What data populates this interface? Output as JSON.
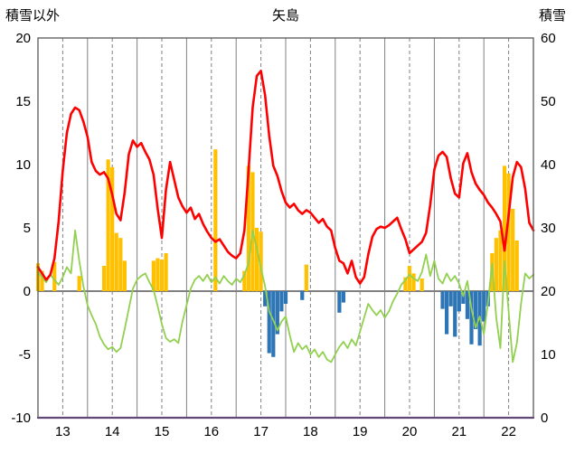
{
  "chart_data": {
    "type": "line+bar",
    "title": "矢島",
    "left_axis": {
      "label": "積雪以外",
      "min": -10,
      "max": 20,
      "ticks": [
        20,
        15,
        10,
        5,
        0,
        -5,
        -10
      ]
    },
    "right_axis": {
      "label": "積雪",
      "min": 0,
      "max": 60,
      "ticks": [
        60,
        50,
        40,
        30,
        20,
        10,
        0
      ]
    },
    "x_axis": {
      "hours_total": 240,
      "labels": [
        "13",
        "14",
        "15",
        "16",
        "17",
        "18",
        "19",
        "20",
        "21",
        "22"
      ],
      "label_positions_h": [
        12,
        36,
        60,
        84,
        108,
        132,
        156,
        180,
        204,
        228
      ],
      "solid_grid_every_h": 24,
      "dashed_grid_offset_h": 12
    },
    "grid": {
      "vertical_on": true,
      "horizontal_on": false,
      "zero_line_on": true
    },
    "series": [
      {
        "name": "orange_bars",
        "type": "bar",
        "axis": "left",
        "color": "#FFC000",
        "points": [
          [
            0,
            2.2
          ],
          [
            2,
            1.6
          ],
          [
            8,
            2.3
          ],
          [
            20,
            1.2
          ],
          [
            32,
            2.0
          ],
          [
            34,
            10.4
          ],
          [
            36,
            9.8
          ],
          [
            38,
            4.6
          ],
          [
            40,
            4.2
          ],
          [
            42,
            2.4
          ],
          [
            56,
            2.4
          ],
          [
            58,
            2.6
          ],
          [
            60,
            2.5
          ],
          [
            62,
            3.0
          ],
          [
            86,
            11.2
          ],
          [
            100,
            1.6
          ],
          [
            102,
            9.9
          ],
          [
            104,
            9.4
          ],
          [
            106,
            5.0
          ],
          [
            108,
            4.7
          ],
          [
            130,
            2.1
          ],
          [
            178,
            1.1
          ],
          [
            180,
            2.0
          ],
          [
            182,
            1.4
          ],
          [
            186,
            1.0
          ],
          [
            220,
            3.0
          ],
          [
            222,
            4.2
          ],
          [
            224,
            4.8
          ],
          [
            226,
            9.9
          ],
          [
            228,
            9.3
          ],
          [
            230,
            6.5
          ],
          [
            232,
            4.0
          ]
        ]
      },
      {
        "name": "blue_bars",
        "type": "bar",
        "axis": "left",
        "color": "#2E75B6",
        "points": [
          [
            110,
            -1.2
          ],
          [
            112,
            -4.9
          ],
          [
            114,
            -5.2
          ],
          [
            116,
            -3.4
          ],
          [
            118,
            -1.6
          ],
          [
            120,
            -1.0
          ],
          [
            128,
            -0.7
          ],
          [
            146,
            -1.7
          ],
          [
            148,
            -0.9
          ],
          [
            196,
            -1.4
          ],
          [
            198,
            -3.4
          ],
          [
            200,
            -1.2
          ],
          [
            202,
            -3.6
          ],
          [
            204,
            -1.6
          ],
          [
            206,
            -1.0
          ],
          [
            208,
            -2.2
          ],
          [
            210,
            -4.2
          ],
          [
            212,
            -3.0
          ],
          [
            214,
            -4.3
          ],
          [
            216,
            -2.4
          ],
          [
            218,
            -1.2
          ]
        ]
      },
      {
        "name": "purple_line",
        "type": "line",
        "axis": "right",
        "color": "#7030A0",
        "width": 2.2,
        "x_h": [
          0,
          240
        ],
        "values": [
          0,
          0
        ]
      },
      {
        "name": "green_line",
        "type": "line",
        "axis": "left",
        "color": "#92D050",
        "width": 1.8,
        "step_h": 2,
        "values": [
          1.5,
          1.1,
          0.7,
          1.3,
          0.9,
          0.5,
          1.1,
          1.9,
          1.4,
          4.8,
          2.4,
          0.4,
          -1.1,
          -1.9,
          -2.6,
          -3.6,
          -4.2,
          -4.6,
          -4.4,
          -4.8,
          -4.5,
          -3.0,
          -1.4,
          0.2,
          0.9,
          1.2,
          1.4,
          0.7,
          0.1,
          -1.2,
          -2.6,
          -3.7,
          -4.0,
          -3.8,
          -4.1,
          -2.4,
          -1.1,
          0.2,
          0.9,
          1.2,
          0.8,
          1.3,
          0.7,
          1.1,
          0.6,
          1.2,
          0.8,
          0.5,
          1.0,
          0.7,
          1.3,
          2.2,
          4.8,
          3.4,
          1.8,
          0.4,
          -1.6,
          -2.3,
          -3.1,
          -2.4,
          -2.0,
          -3.5,
          -4.8,
          -4.1,
          -4.6,
          -4.3,
          -5.0,
          -4.6,
          -5.2,
          -4.8,
          -5.4,
          -5.6,
          -5.0,
          -4.4,
          -4.0,
          -4.5,
          -3.8,
          -4.3,
          -3.2,
          -2.1,
          -1.0,
          -1.5,
          -1.9,
          -1.5,
          -2.1,
          -1.6,
          -0.8,
          -0.2,
          0.5,
          0.9,
          1.3,
          1.0,
          0.8,
          1.5,
          2.9,
          1.2,
          2.4,
          1.0,
          0.6,
          1.4,
          0.8,
          1.2,
          0.6,
          -0.4,
          0.8,
          -1.4,
          -2.9,
          -2.0,
          -3.4,
          -0.9,
          2.2,
          -2.1,
          -4.5,
          2.4,
          -1.6,
          -5.6,
          -4.1,
          -1.0,
          1.4,
          1.0,
          1.3
        ]
      },
      {
        "name": "red_line",
        "type": "line",
        "axis": "left",
        "color": "#FF0000",
        "width": 2.6,
        "step_h": 2,
        "values": [
          1.9,
          1.4,
          0.9,
          1.3,
          2.6,
          5.5,
          9.5,
          12.5,
          14.0,
          14.5,
          14.3,
          13.4,
          12.2,
          10.2,
          9.5,
          9.2,
          9.4,
          8.9,
          7.6,
          6.1,
          5.6,
          7.8,
          10.8,
          11.9,
          11.4,
          11.7,
          11.0,
          10.4,
          9.2,
          6.5,
          4.2,
          8.0,
          10.2,
          8.8,
          7.4,
          6.7,
          6.2,
          6.6,
          5.7,
          6.1,
          5.3,
          4.7,
          4.2,
          3.9,
          4.1,
          3.6,
          3.1,
          2.8,
          2.6,
          3.0,
          4.8,
          9.5,
          14.5,
          17.0,
          17.4,
          15.5,
          12.3,
          9.9,
          9.1,
          7.9,
          7.0,
          6.6,
          6.9,
          6.4,
          6.1,
          6.4,
          6.2,
          5.8,
          5.4,
          5.7,
          5.1,
          4.8,
          3.4,
          2.4,
          2.2,
          1.4,
          2.4,
          1.1,
          0.6,
          1.1,
          2.9,
          4.3,
          4.9,
          5.1,
          5.0,
          5.2,
          5.5,
          5.8,
          4.9,
          4.1,
          3.0,
          3.3,
          3.6,
          3.9,
          4.6,
          6.8,
          9.6,
          10.7,
          11.0,
          10.6,
          8.9,
          7.7,
          7.4,
          10.1,
          10.9,
          9.4,
          8.5,
          8.0,
          7.6,
          7.0,
          6.6,
          6.1,
          5.5,
          3.2,
          6.0,
          9.0,
          10.2,
          9.8,
          8.1,
          5.4,
          4.8
        ]
      }
    ]
  }
}
